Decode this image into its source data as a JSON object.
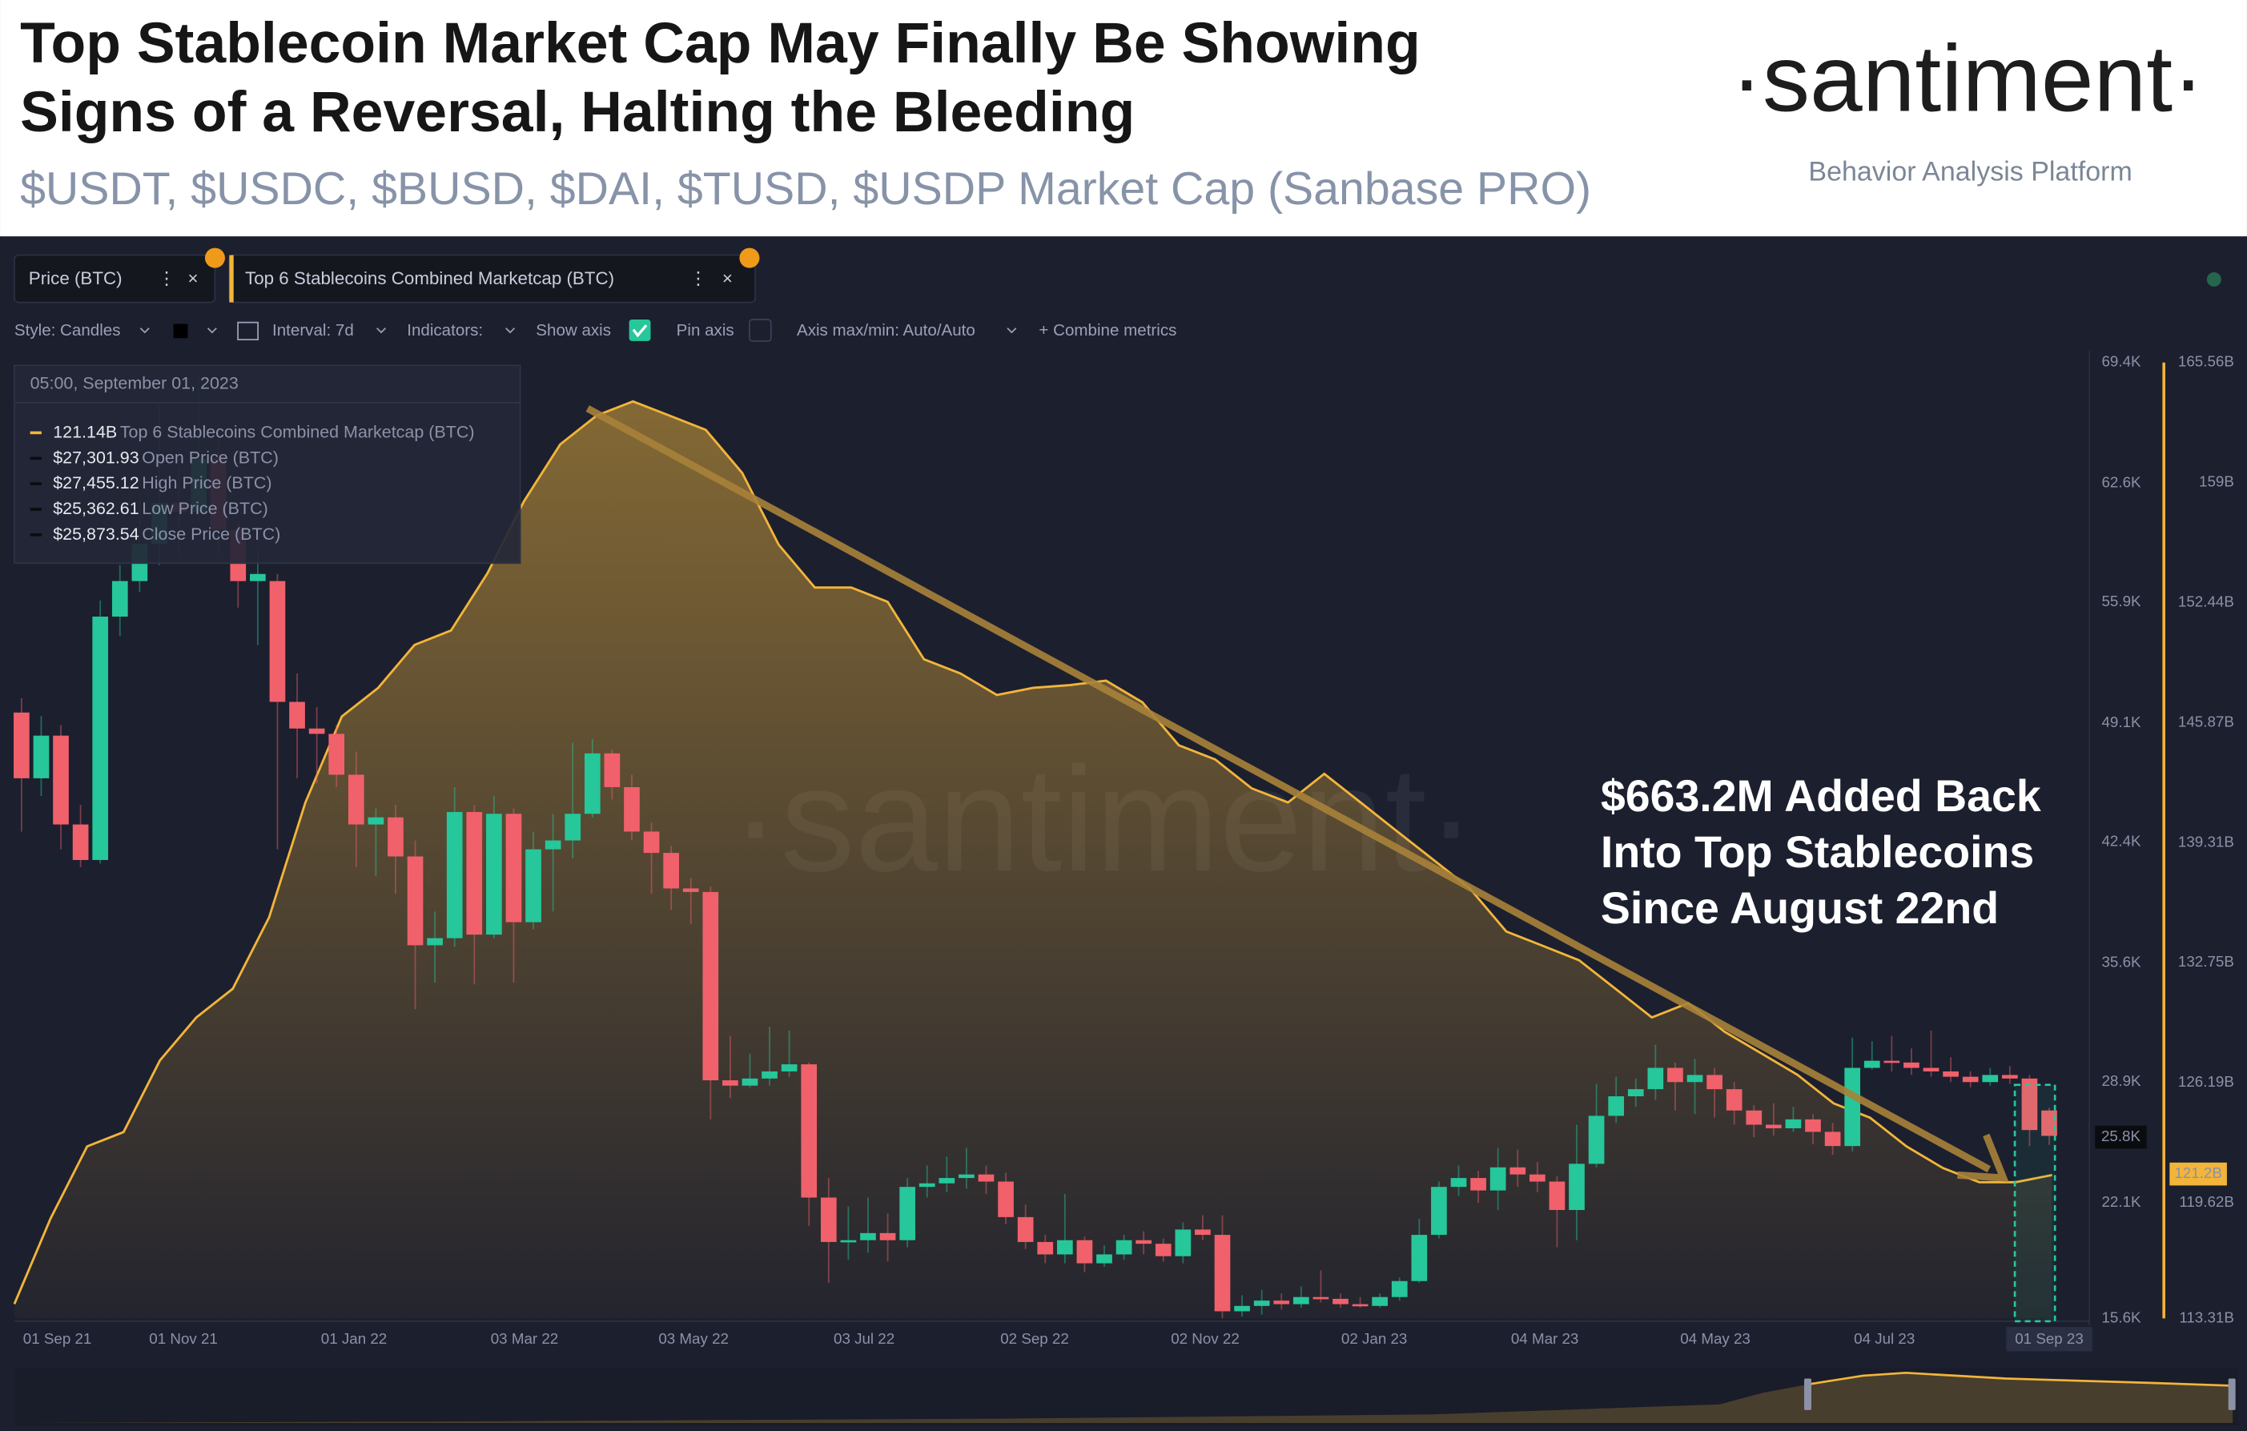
{
  "header": {
    "title_lines": [
      "Top Stablecoin Market Cap May Finally Be Showing",
      "Signs of a Reversal, Halting the Bleeding"
    ],
    "subtitle": "$USDT, $USDC, $BUSD, $DAI, $TUSD, $USDP Market Cap (Sanbase PRO)",
    "logo": "·santiment·",
    "tagline": "Behavior Analysis Platform"
  },
  "toolbar": {
    "options": [
      "Style: Candles",
      "Interval: 7d",
      "Indicators:",
      "Show axis",
      "Pin axis",
      "Axis max/min: Auto/Auto",
      "+ Combine metrics"
    ]
  },
  "watermark": "·santiment·",
  "tooltip": {
    "date": "05:00, September 01, 2023",
    "rows": [
      {
        "value": "121.14B",
        "metric": "Top 6 Stablecoins Combined Marketcap (BTC)"
      },
      {
        "value": "$27,301.93",
        "metric": "Open Price (BTC)"
      },
      {
        "value": "$27,455.12",
        "metric": "High Price (BTC)"
      },
      {
        "value": "$25,362.61",
        "metric": "Low Price (BTC)"
      },
      {
        "value": "$25,873.54",
        "metric": "Close Price (BTC)"
      }
    ]
  },
  "chart_data": [
    {
      "type": "candlestick",
      "name": "Price (BTC)",
      "up_color": "#26c79a",
      "down_color": "#f0616b",
      "ylim": [
        15600,
        69400
      ],
      "yticks": [
        {
          "value": 69400,
          "label": "69.4K"
        },
        {
          "value": 62600,
          "label": "62.6K"
        },
        {
          "value": 55900,
          "label": "55.9K"
        },
        {
          "value": 49100,
          "label": "49.1K"
        },
        {
          "value": 42400,
          "label": "42.4K"
        },
        {
          "value": 35600,
          "label": "35.6K"
        },
        {
          "value": 28900,
          "label": "28.9K"
        },
        {
          "value": 22100,
          "label": "22.1K"
        },
        {
          "value": 15600,
          "label": "15.6K"
        }
      ],
      "x_labels": [
        "01 Sep 21",
        "01 Nov 21",
        "01 Jan 22",
        "03 Mar 22",
        "03 May 22",
        "03 Jul 22",
        "02 Sep 22",
        "02 Nov 22",
        "02 Jan 23",
        "04 Mar 23",
        "04 May 23",
        "04 Jul 23",
        "01 Sep 23"
      ],
      "current": {
        "value": 25800,
        "label": "25.8K"
      },
      "annotation": [
        "$663.2M Added Back",
        "Into Top Stablecoins",
        "Since August 22nd"
      ],
      "ohlc": [
        [
          49700,
          50500,
          43000,
          46000
        ],
        [
          46000,
          49500,
          45000,
          48400
        ],
        [
          48400,
          49000,
          42000,
          43400
        ],
        [
          43400,
          44500,
          41000,
          41400
        ],
        [
          41400,
          56000,
          41200,
          55100
        ],
        [
          55100,
          58000,
          54000,
          57100
        ],
        [
          57100,
          62000,
          56500,
          59200
        ],
        [
          59200,
          67000,
          58000,
          61500
        ],
        [
          61500,
          63500,
          58500,
          61000
        ],
        [
          61000,
          68800,
          60500,
          64000
        ],
        [
          64000,
          66000,
          58500,
          60000
        ],
        [
          60000,
          60500,
          55600,
          57100
        ],
        [
          57100,
          59000,
          53500,
          57500
        ],
        [
          57100,
          57500,
          42000,
          50300
        ],
        [
          50300,
          51900,
          46000,
          48800
        ],
        [
          48800,
          50000,
          45700,
          48500
        ],
        [
          48500,
          49000,
          45500,
          46200
        ],
        [
          46200,
          47500,
          41000,
          43400
        ],
        [
          43400,
          44300,
          40500,
          43800
        ],
        [
          43800,
          44500,
          39500,
          41600
        ],
        [
          41600,
          42500,
          33000,
          36600
        ],
        [
          36600,
          38500,
          34500,
          37000
        ],
        [
          37000,
          45500,
          36500,
          44100
        ],
        [
          44100,
          44500,
          34400,
          37200
        ],
        [
          37200,
          45000,
          37000,
          44000
        ],
        [
          44000,
          44300,
          34500,
          37900
        ],
        [
          37900,
          43000,
          37500,
          42000
        ],
        [
          42000,
          44000,
          38500,
          42500
        ],
        [
          42500,
          48000,
          41500,
          44000
        ],
        [
          44000,
          48200,
          43800,
          47400
        ],
        [
          47400,
          47600,
          44800,
          45500
        ],
        [
          45500,
          46200,
          42500,
          43000
        ],
        [
          43000,
          43500,
          39500,
          41800
        ],
        [
          41800,
          42200,
          38600,
          39800
        ],
        [
          39800,
          40400,
          37800,
          39600
        ],
        [
          39600,
          39900,
          26800,
          29000
        ],
        [
          29000,
          31500,
          28000,
          28700
        ],
        [
          28700,
          30500,
          28600,
          29100
        ],
        [
          29100,
          32000,
          28700,
          29500
        ],
        [
          29500,
          31800,
          29200,
          29900
        ],
        [
          29900,
          30000,
          20800,
          22400
        ],
        [
          22400,
          23500,
          17600,
          19900
        ],
        [
          19900,
          21900,
          18900,
          20000
        ],
        [
          20000,
          22400,
          19300,
          20400
        ],
        [
          20400,
          21500,
          18800,
          20000
        ],
        [
          20000,
          23500,
          19600,
          23000
        ],
        [
          23000,
          24200,
          22400,
          23200
        ],
        [
          23200,
          24700,
          22700,
          23500
        ],
        [
          23500,
          25200,
          22900,
          23700
        ],
        [
          23700,
          24200,
          22600,
          23300
        ],
        [
          23300,
          23800,
          20900,
          21300
        ],
        [
          21300,
          22000,
          19500,
          19900
        ],
        [
          19900,
          20300,
          18700,
          19200
        ],
        [
          19200,
          22600,
          18700,
          20000
        ],
        [
          20000,
          20200,
          18200,
          18700
        ],
        [
          18700,
          19700,
          18500,
          19200
        ],
        [
          19200,
          20300,
          18900,
          20000
        ],
        [
          20000,
          20500,
          19200,
          19800
        ],
        [
          19800,
          20100,
          18800,
          19100
        ],
        [
          19100,
          21000,
          18700,
          20600
        ],
        [
          20600,
          21400,
          20000,
          20300
        ],
        [
          20300,
          21400,
          15600,
          16000
        ],
        [
          16000,
          16900,
          15700,
          16300
        ],
        [
          16300,
          17200,
          15800,
          16600
        ],
        [
          16600,
          17000,
          16100,
          16400
        ],
        [
          16400,
          17400,
          16200,
          16800
        ],
        [
          16800,
          18300,
          16500,
          16700
        ],
        [
          16700,
          17000,
          16200,
          16400
        ],
        [
          16400,
          16800,
          16200,
          16300
        ],
        [
          16300,
          17000,
          16200,
          16800
        ],
        [
          16800,
          17900,
          16600,
          17700
        ],
        [
          17700,
          21200,
          17600,
          20300
        ],
        [
          20300,
          23300,
          20100,
          23000
        ],
        [
          23000,
          24200,
          22500,
          23500
        ],
        [
          23500,
          23900,
          22100,
          22800
        ],
        [
          22800,
          25200,
          21700,
          24100
        ],
        [
          24100,
          25100,
          23000,
          23700
        ],
        [
          23700,
          24400,
          22700,
          23300
        ],
        [
          23300,
          23600,
          19600,
          21700
        ],
        [
          21700,
          26500,
          20000,
          24300
        ],
        [
          24300,
          28800,
          24100,
          27000
        ],
        [
          27000,
          29200,
          26600,
          28100
        ],
        [
          28100,
          29100,
          27500,
          28500
        ],
        [
          28500,
          31000,
          27900,
          29700
        ],
        [
          29700,
          30000,
          27300,
          28900
        ],
        [
          28900,
          30200,
          27100,
          29300
        ],
        [
          29300,
          29700,
          26900,
          28500
        ],
        [
          28500,
          28900,
          26500,
          27300
        ],
        [
          27300,
          27600,
          25800,
          26500
        ],
        [
          26500,
          27700,
          25900,
          26300
        ],
        [
          26300,
          27500,
          26100,
          26800
        ],
        [
          26800,
          27100,
          25400,
          26100
        ],
        [
          26100,
          26600,
          24800,
          25300
        ],
        [
          25300,
          31400,
          25000,
          29700
        ],
        [
          29700,
          31200,
          29600,
          30100
        ],
        [
          30100,
          31500,
          29500,
          30000
        ],
        [
          30000,
          30800,
          29300,
          29700
        ],
        [
          29700,
          31800,
          29200,
          29500
        ],
        [
          29500,
          30300,
          28900,
          29200
        ],
        [
          29200,
          29500,
          28600,
          28900
        ],
        [
          28900,
          29700,
          28700,
          29300
        ],
        [
          29300,
          29800,
          28800,
          29100
        ],
        [
          29100,
          29300,
          25300,
          26200
        ],
        [
          27301.93,
          27455.12,
          25362.61,
          25873.54
        ]
      ]
    },
    {
      "type": "line",
      "name": "Top 6 Stablecoins Combined Marketcap (BTC)",
      "color": "#f2b53a",
      "axis": "y2",
      "ylim": [
        113.31,
        165.56
      ],
      "yticks": [
        {
          "value": 165.56,
          "label": "165.56B"
        },
        {
          "value": 159,
          "label": "159B"
        },
        {
          "value": 152.44,
          "label": "152.44B"
        },
        {
          "value": 145.87,
          "label": "145.87B"
        },
        {
          "value": 139.31,
          "label": "139.31B"
        },
        {
          "value": 132.75,
          "label": "132.75B"
        },
        {
          "value": 126.19,
          "label": "126.19B"
        },
        {
          "value": 119.62,
          "label": "119.62B"
        },
        {
          "value": 113.31,
          "label": "113.31B"
        }
      ],
      "current": {
        "value": 121.2,
        "label": "121.2B"
      },
      "values": [
        114.09,
        118.79,
        122.71,
        123.49,
        127.41,
        129.76,
        131.33,
        135.24,
        141.51,
        146.21,
        147.78,
        150.13,
        150.91,
        154.04,
        157.96,
        161.09,
        162.66,
        163.44,
        162.66,
        161.88,
        159.53,
        155.61,
        153.26,
        153.26,
        152.48,
        149.34,
        148.56,
        147.39,
        147.78,
        147.93,
        148.17,
        146.99,
        144.64,
        143.86,
        142.29,
        141.51,
        143.08,
        141.51,
        139.94,
        138.38,
        136.81,
        134.46,
        133.68,
        132.89,
        131.33,
        129.76,
        130.54,
        128.98,
        127.8,
        126.63,
        125.06,
        124.28,
        122.71,
        121.53,
        120.75,
        120.75,
        121.14
      ]
    }
  ]
}
